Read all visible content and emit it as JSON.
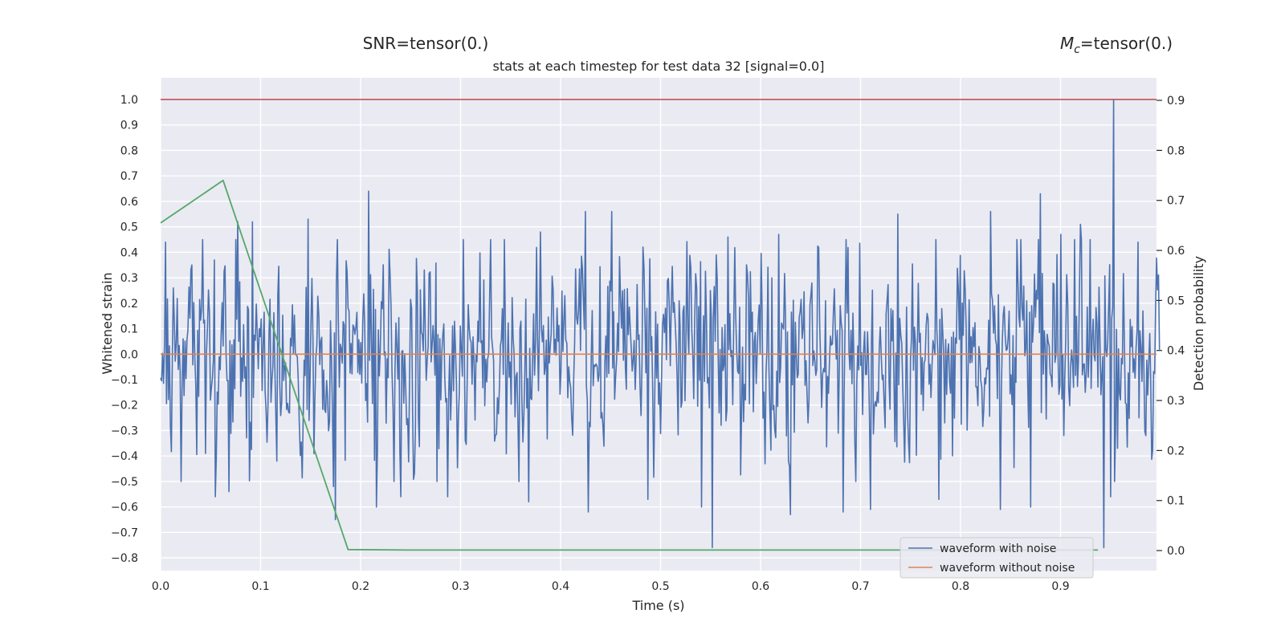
{
  "chart_data": {
    "type": "line",
    "title": "stats at each timestep for test data 32 [signal=0.0]",
    "snr_annotation": "SNR=tensor(0.)",
    "mc_annotation_symbol": "M",
    "mc_annotation_subscript": "c",
    "mc_annotation_value": "=tensor(0.)",
    "xlabel": "Time (s)",
    "ylabel_left": "Whitened strain",
    "ylabel_right": "Detection probability",
    "xlim": [
      0.0,
      0.996
    ],
    "ylim_left": [
      -0.85,
      1.085
    ],
    "ylim_right": [
      -0.04,
      0.945
    ],
    "x_ticks": [
      0.0,
      0.1,
      0.2,
      0.3,
      0.4,
      0.5,
      0.6,
      0.7,
      0.8,
      0.9
    ],
    "x_tick_labels": [
      "0.0",
      "0.1",
      "0.2",
      "0.3",
      "0.4",
      "0.5",
      "0.6",
      "0.7",
      "0.8",
      "0.9"
    ],
    "y_left_ticks": [
      1.0,
      0.9,
      0.8,
      0.7,
      0.6,
      0.5,
      0.4,
      0.3,
      0.2,
      0.1,
      0.0,
      -0.1,
      -0.2,
      -0.3,
      -0.4,
      -0.5,
      -0.6,
      -0.7,
      -0.8
    ],
    "y_left_tick_labels": [
      "1.0",
      "0.9",
      "0.8",
      "0.7",
      "0.6",
      "0.5",
      "0.4",
      "0.3",
      "0.2",
      "0.1",
      "0.0",
      "−0.1",
      "−0.2",
      "−0.3",
      "−0.4",
      "−0.5",
      "−0.6",
      "−0.7",
      "−0.8"
    ],
    "y_right_ticks": [
      0.9,
      0.8,
      0.7,
      0.6,
      0.5,
      0.4,
      0.3,
      0.2,
      0.1,
      0.0
    ],
    "y_right_tick_labels": [
      "0.9",
      "0.8",
      "0.7",
      "0.6",
      "0.5",
      "0.4",
      "0.3",
      "0.2",
      "0.1",
      "0.0"
    ],
    "grid": true,
    "legend_position": "bottom-right",
    "noise_series": {
      "name": "waveform with noise",
      "color": "#4c72b0",
      "sample_count": 1024,
      "x_start": 0.0,
      "x_end": 0.999,
      "rms": 0.22,
      "peaks": [
        {
          "x": 0.0045,
          "y": 0.44
        },
        {
          "x": 0.045,
          "y": -0.39
        },
        {
          "x": 0.054,
          "y": 0.37
        },
        {
          "x": 0.0545,
          "y": -0.56
        },
        {
          "x": 0.068,
          "y": -0.54
        },
        {
          "x": 0.077,
          "y": 0.52
        },
        {
          "x": 0.092,
          "y": 0.52
        },
        {
          "x": 0.116,
          "y": -0.42
        },
        {
          "x": 0.147,
          "y": 0.53
        },
        {
          "x": 0.173,
          "y": -0.52
        },
        {
          "x": 0.175,
          "y": -0.65
        },
        {
          "x": 0.208,
          "y": 0.64
        },
        {
          "x": 0.216,
          "y": -0.6
        },
        {
          "x": 0.24,
          "y": -0.56
        },
        {
          "x": 0.287,
          "y": -0.56
        },
        {
          "x": 0.303,
          "y": 0.45
        },
        {
          "x": 0.368,
          "y": -0.58
        },
        {
          "x": 0.38,
          "y": 0.48
        },
        {
          "x": 0.425,
          "y": 0.56
        },
        {
          "x": 0.428,
          "y": -0.62
        },
        {
          "x": 0.451,
          "y": 0.56
        },
        {
          "x": 0.487,
          "y": -0.57
        },
        {
          "x": 0.541,
          "y": -0.6
        },
        {
          "x": 0.552,
          "y": -0.76
        },
        {
          "x": 0.567,
          "y": 0.46
        },
        {
          "x": 0.618,
          "y": 0.47
        },
        {
          "x": 0.63,
          "y": -0.63
        },
        {
          "x": 0.683,
          "y": -0.62
        },
        {
          "x": 0.71,
          "y": -0.61
        },
        {
          "x": 0.737,
          "y": 0.55
        },
        {
          "x": 0.778,
          "y": -0.57
        },
        {
          "x": 0.83,
          "y": 0.56
        },
        {
          "x": 0.84,
          "y": -0.61
        },
        {
          "x": 0.87,
          "y": -0.6
        },
        {
          "x": 0.88,
          "y": 0.63
        },
        {
          "x": 0.9,
          "y": 0.47
        },
        {
          "x": 0.92,
          "y": 0.51
        },
        {
          "x": 0.943,
          "y": -0.76
        },
        {
          "x": 0.9535,
          "y": 1.0
        },
        {
          "x": 0.95,
          "y": -0.56
        },
        {
          "x": 0.978,
          "y": 0.44
        }
      ]
    },
    "clean_series": {
      "name": "waveform without noise",
      "color": "#dd8452",
      "y_value": 0.0
    },
    "probability_series": {
      "name": "",
      "color": "#55a868",
      "axis": "right",
      "x": [
        0.0,
        0.0625,
        0.1875,
        0.25,
        0.3125,
        0.375,
        0.4375,
        0.5,
        0.5625,
        0.625,
        0.6875,
        0.75,
        0.8125,
        0.875,
        0.9375
      ],
      "y": [
        0.655,
        0.74,
        0.002,
        0.001,
        0.001,
        0.001,
        0.001,
        0.001,
        0.001,
        0.001,
        0.001,
        0.001,
        0.001,
        0.001,
        0.001
      ]
    },
    "threshold_line": {
      "color": "#c44e52",
      "axis": "left",
      "y_value": 1.0
    }
  }
}
